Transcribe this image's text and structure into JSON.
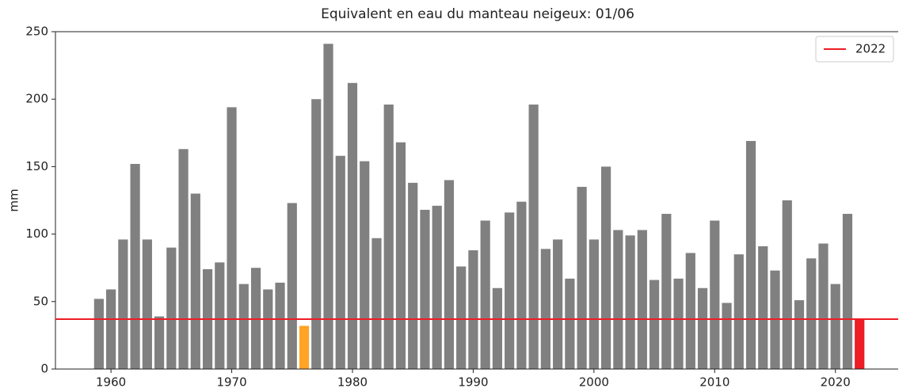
{
  "chart_data": {
    "type": "bar",
    "title": "Equivalent en eau du manteau neigeux: 01/06",
    "ylabel": "mm",
    "x": [
      1959,
      1960,
      1961,
      1962,
      1963,
      1964,
      1965,
      1966,
      1967,
      1968,
      1969,
      1970,
      1971,
      1972,
      1973,
      1974,
      1975,
      1976,
      1977,
      1978,
      1979,
      1980,
      1981,
      1982,
      1983,
      1984,
      1985,
      1986,
      1987,
      1988,
      1989,
      1990,
      1991,
      1992,
      1993,
      1994,
      1995,
      1996,
      1997,
      1998,
      1999,
      2000,
      2001,
      2002,
      2003,
      2004,
      2005,
      2006,
      2007,
      2008,
      2009,
      2010,
      2011,
      2012,
      2013,
      2014,
      2015,
      2016,
      2017,
      2018,
      2019,
      2020,
      2021,
      2022
    ],
    "values": [
      52,
      59,
      96,
      152,
      96,
      39,
      90,
      163,
      130,
      74,
      79,
      194,
      63,
      75,
      59,
      64,
      123,
      32,
      200,
      241,
      158,
      212,
      154,
      97,
      196,
      168,
      138,
      118,
      121,
      140,
      76,
      88,
      110,
      60,
      116,
      124,
      196,
      89,
      96,
      67,
      135,
      96,
      150,
      103,
      99,
      103,
      66,
      115,
      67,
      86,
      60,
      110,
      49,
      85,
      169,
      91,
      73,
      125,
      51,
      82,
      93,
      63,
      115,
      37
    ],
    "colors": [
      "#808080",
      "#808080",
      "#808080",
      "#808080",
      "#808080",
      "#808080",
      "#808080",
      "#808080",
      "#808080",
      "#808080",
      "#808080",
      "#808080",
      "#808080",
      "#808080",
      "#808080",
      "#808080",
      "#808080",
      "#ffa424",
      "#808080",
      "#808080",
      "#808080",
      "#808080",
      "#808080",
      "#808080",
      "#808080",
      "#808080",
      "#808080",
      "#808080",
      "#808080",
      "#808080",
      "#808080",
      "#808080",
      "#808080",
      "#808080",
      "#808080",
      "#808080",
      "#808080",
      "#808080",
      "#808080",
      "#808080",
      "#808080",
      "#808080",
      "#808080",
      "#808080",
      "#808080",
      "#808080",
      "#808080",
      "#808080",
      "#808080",
      "#808080",
      "#808080",
      "#808080",
      "#808080",
      "#808080",
      "#808080",
      "#808080",
      "#808080",
      "#808080",
      "#808080",
      "#808080",
      "#808080",
      "#808080",
      "#808080",
      "#ee1c24"
    ],
    "hline": {
      "name": "2022",
      "value": 37,
      "color": "#ee1c24"
    },
    "legend": "upper right",
    "xlim": [
      1955.4,
      2025.2
    ],
    "xticks": [
      1960,
      1970,
      1980,
      1990,
      2000,
      2010,
      2020
    ],
    "ylim": [
      0,
      250
    ],
    "yticks": [
      0,
      50,
      100,
      150,
      200,
      250
    ]
  }
}
